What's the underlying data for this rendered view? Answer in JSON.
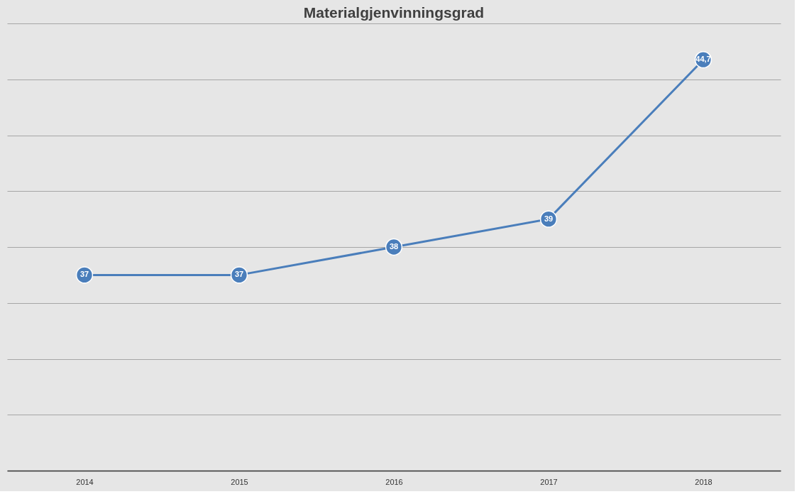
{
  "chart_data": {
    "type": "line",
    "title": "Materialgjenvinningsgrad",
    "categories": [
      "2014",
      "2015",
      "2016",
      "2017",
      "2018"
    ],
    "series": [
      {
        "color": "#4a7ebb",
        "values": [
          37,
          37,
          38,
          39,
          44.7
        ],
        "value_labels": [
          "37",
          "37",
          "38",
          "39",
          "44,7"
        ]
      }
    ],
    "ylim": [
      30,
      46
    ],
    "yticks": [
      {
        "value": 30,
        "label": null
      },
      {
        "value": 32,
        "label": null
      },
      {
        "value": 34,
        "label": null
      },
      {
        "value": 36,
        "label": null
      },
      {
        "value": 38,
        "label": null
      },
      {
        "value": 40,
        "label": null
      },
      {
        "value": 42,
        "label": null
      },
      {
        "value": 44,
        "label": null
      },
      {
        "value": 46,
        "label": null
      }
    ],
    "grid": "y",
    "tick_labels": "x",
    "marker": "circle",
    "line_style": "solid"
  }
}
